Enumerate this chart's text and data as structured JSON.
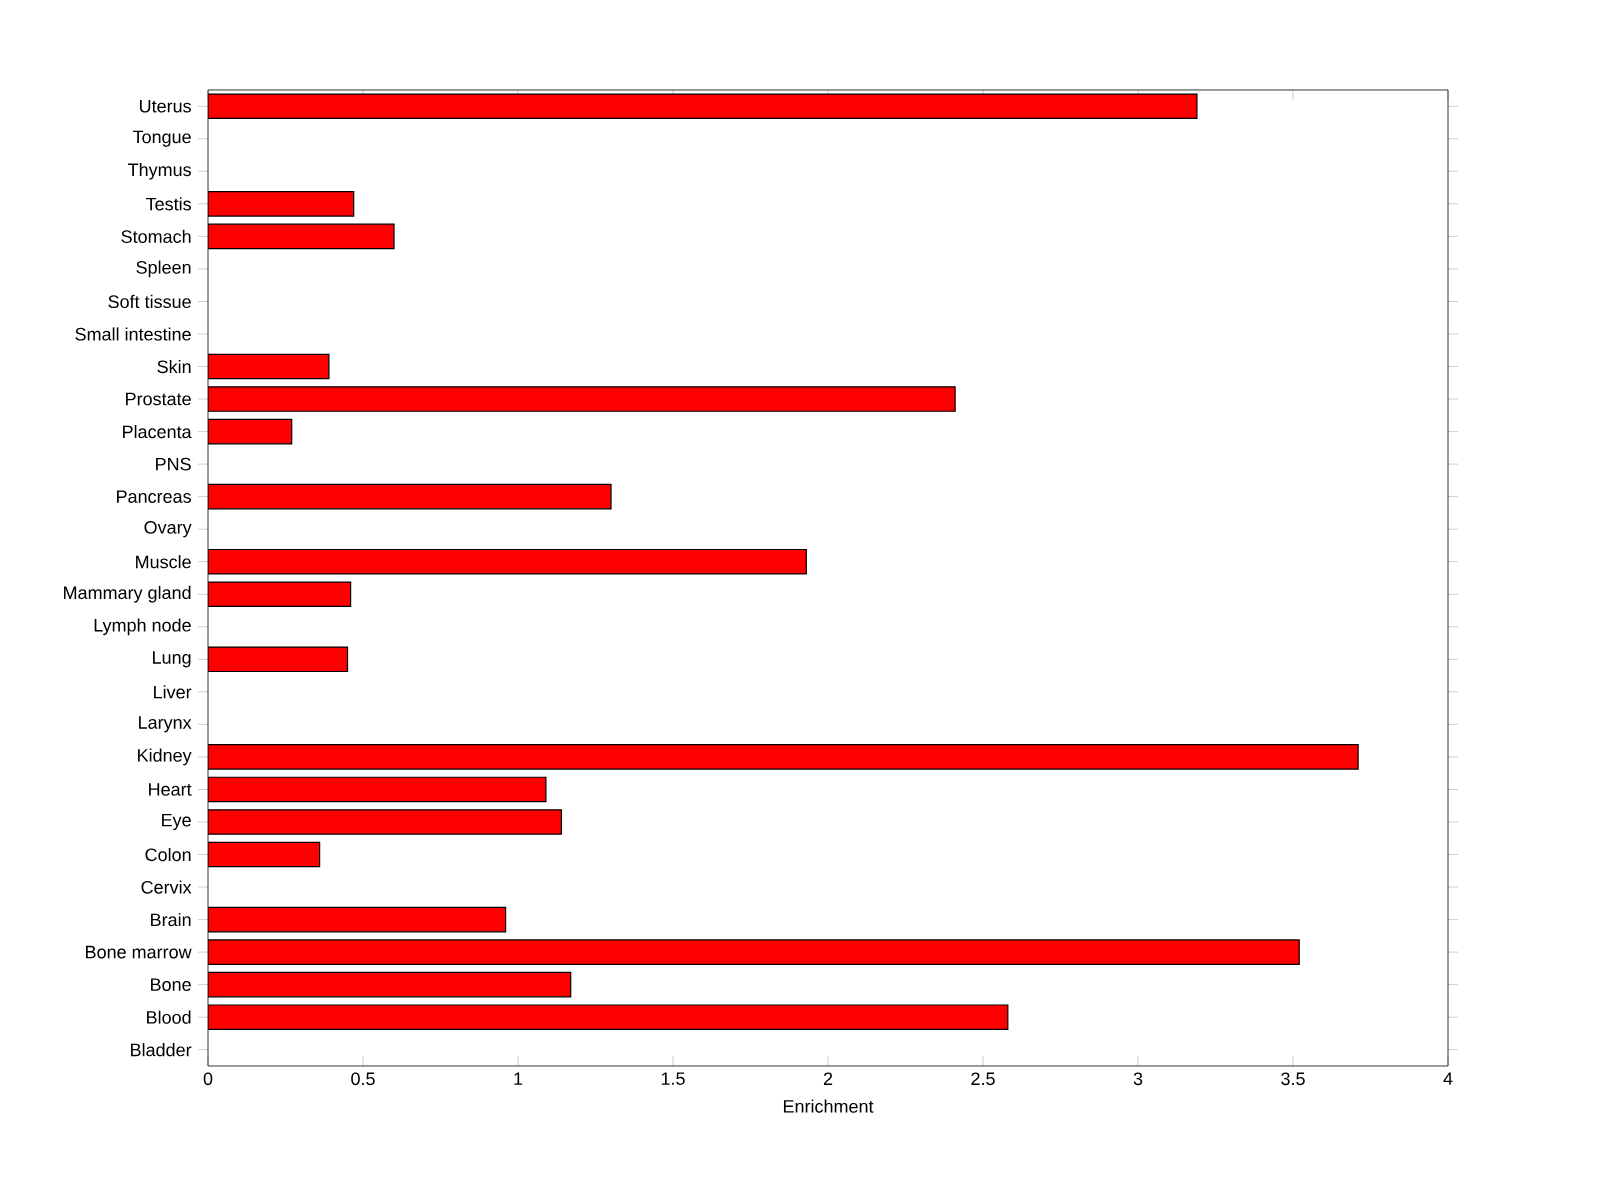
{
  "chart_data": {
    "type": "bar",
    "orientation": "horizontal",
    "xlabel": "Enrichment",
    "categories": [
      "Uterus",
      "Tongue",
      "Thymus",
      "Testis",
      "Stomach",
      "Spleen",
      "Soft tissue",
      "Small intestine",
      "Skin",
      "Prostate",
      "Placenta",
      "PNS",
      "Pancreas",
      "Ovary",
      "Muscle",
      "Mammary gland",
      "Lymph node",
      "Lung",
      "Liver",
      "Larynx",
      "Kidney",
      "Heart",
      "Eye",
      "Colon",
      "Cervix",
      "Brain",
      "Bone marrow",
      "Bone",
      "Blood",
      "Bladder"
    ],
    "values": [
      3.19,
      null,
      null,
      0.47,
      0.6,
      null,
      null,
      null,
      0.39,
      2.41,
      0.27,
      null,
      1.3,
      null,
      1.93,
      0.46,
      null,
      0.45,
      null,
      null,
      3.71,
      1.09,
      1.14,
      0.36,
      null,
      0.96,
      3.52,
      1.17,
      2.58,
      null
    ],
    "color": "#ff0000",
    "xlim": [
      0,
      4
    ],
    "xticks": [
      0,
      0.5,
      1,
      1.5,
      2,
      2.5,
      3,
      3.5,
      4
    ]
  }
}
